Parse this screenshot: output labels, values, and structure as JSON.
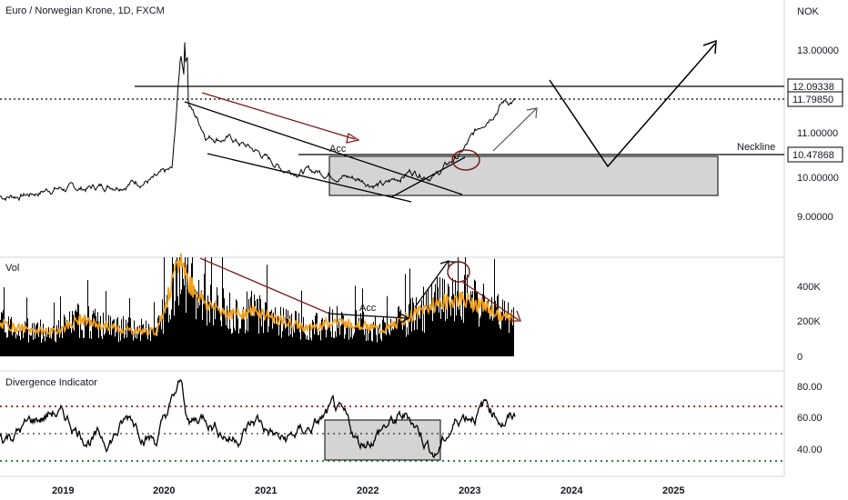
{
  "chart_data": [
    {
      "type": "line",
      "title": "Euro / Norwegian Krone, 1D, FXCM",
      "currency": "NOK",
      "y_ticks": [
        "13.00000",
        "11.00000",
        "10.00000",
        "9.00000"
      ],
      "ylim": [
        8.6,
        13.55
      ],
      "price_tags": [
        "12.09338",
        "11.79850",
        "10.47868"
      ],
      "annotations": [
        "Acc",
        "Neckline"
      ],
      "series": [
        {
          "x": [
            "2018-06",
            "2018-09",
            "2018-12",
            "2019-03",
            "2019-06",
            "2019-09",
            "2019-12",
            "2020-02",
            "2020-03",
            "2020-04",
            "2020-06",
            "2020-09",
            "2020-12",
            "2021-03",
            "2021-06",
            "2021-09",
            "2021-12",
            "2022-03",
            "2022-06",
            "2022-09",
            "2022-12",
            "2023-03",
            "2023-05"
          ],
          "values": [
            9.55,
            9.6,
            9.75,
            9.72,
            9.8,
            9.9,
            9.95,
            10.15,
            12.9,
            11.7,
            11.0,
            10.9,
            10.6,
            10.2,
            10.15,
            10.1,
            9.95,
            9.8,
            10.15,
            10.05,
            10.55,
            11.4,
            11.8
          ]
        }
      ]
    },
    {
      "type": "bar",
      "title": "Vol",
      "y_ticks": [
        "400K",
        "200K",
        "0"
      ],
      "ylim": [
        0,
        580000
      ],
      "annotations": [
        "Acc"
      ],
      "series": [
        {
          "x": [
            "2018-06",
            "2018-09",
            "2018-12",
            "2019-03",
            "2019-06",
            "2019-09",
            "2019-12",
            "2020-03",
            "2020-04",
            "2020-06",
            "2020-09",
            "2020-12",
            "2021-03",
            "2021-06",
            "2021-09",
            "2021-12",
            "2022-03",
            "2022-06",
            "2022-09",
            "2022-12",
            "2023-03",
            "2023-05"
          ],
          "values": [
            180000,
            150000,
            140000,
            210000,
            170000,
            150000,
            140000,
            560000,
            420000,
            300000,
            240000,
            260000,
            200000,
            160000,
            200000,
            180000,
            150000,
            230000,
            300000,
            330000,
            280000,
            220000
          ]
        }
      ]
    },
    {
      "type": "line",
      "title": "Divergence Indicator",
      "y_ticks": [
        "80.00",
        "60.00",
        "40.00"
      ],
      "ylim": [
        30,
        85
      ],
      "series": [
        {
          "x": [
            "2018-06",
            "2018-09",
            "2018-12",
            "2019-03",
            "2019-06",
            "2019-09",
            "2019-12",
            "2020-03",
            "2020-04",
            "2020-06",
            "2020-09",
            "2020-12",
            "2021-03",
            "2021-06",
            "2021-09",
            "2021-12",
            "2022-03",
            "2022-06",
            "2022-09",
            "2022-12",
            "2023-03",
            "2023-05"
          ],
          "values": [
            48,
            55,
            64,
            52,
            45,
            60,
            47,
            80,
            55,
            62,
            48,
            58,
            44,
            52,
            63,
            42,
            55,
            60,
            38,
            62,
            68,
            60
          ]
        }
      ]
    }
  ],
  "x_axis": {
    "years": [
      "2019",
      "2020",
      "2021",
      "2022",
      "2023",
      "2024",
      "2025"
    ]
  }
}
